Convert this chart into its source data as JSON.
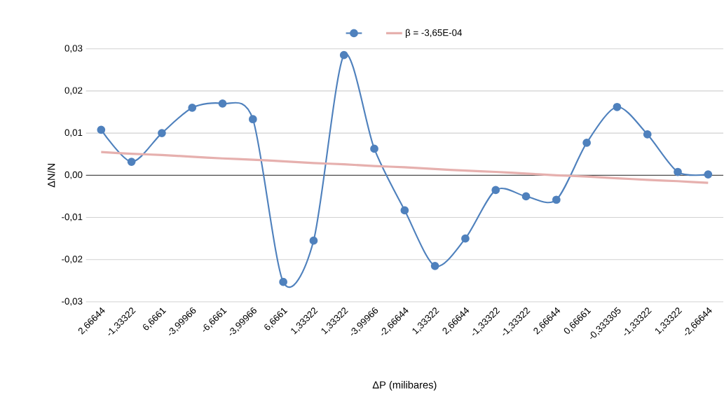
{
  "chart_data": {
    "type": "line",
    "xlabel": "ΔP (milibares)",
    "ylabel": "ΔN/N",
    "categories": [
      "2,66644",
      "-1,33322",
      "6,6661",
      "-3,99966",
      "-6,6661",
      "-3,99966",
      "6,6661",
      "1,33322",
      "1,33322",
      "-3,99966",
      "-2,66644",
      "1,33322",
      "2,66644",
      "-1,33322",
      "-1,33322",
      "2,66644",
      "0,66661",
      "-0,333305",
      "-1,33322",
      "1,33322",
      "-2,66644"
    ],
    "series": [
      {
        "color": "#4f81bd",
        "marker": "circle",
        "values": [
          0.0108,
          0.0032,
          0.01,
          0.016,
          0.017,
          0.0133,
          -0.0253,
          -0.0155,
          0.0285,
          0.0063,
          -0.0083,
          -0.0215,
          -0.015,
          -0.0035,
          -0.005,
          -0.0058,
          0.0077,
          0.0162,
          0.0097,
          0.0008,
          0.0002
        ]
      },
      {
        "name": "β = -3,65E-04",
        "color": "#e6b0ae",
        "marker": "none",
        "values": [
          0.0055,
          0.0051,
          0.0048,
          0.0044,
          0.004,
          0.0037,
          0.0033,
          0.0029,
          0.0026,
          0.0022,
          0.0019,
          0.0015,
          0.0011,
          0.0008,
          0.0004,
          0.0,
          -0.0003,
          -0.0007,
          -0.0011,
          -0.0014,
          -0.0018
        ]
      }
    ],
    "ylim": [
      -0.03,
      0.03
    ],
    "yticks": [
      {
        "value": -0.03,
        "label": "-0,03"
      },
      {
        "value": -0.02,
        "label": "-0,02"
      },
      {
        "value": -0.01,
        "label": "-0,01"
      },
      {
        "value": 0,
        "label": "0,00"
      },
      {
        "value": 0.01,
        "label": "0,01"
      },
      {
        "value": 0.02,
        "label": "0,02"
      },
      {
        "value": 0.03,
        "label": "0,03"
      }
    ],
    "grid": "y",
    "legend": "top"
  }
}
